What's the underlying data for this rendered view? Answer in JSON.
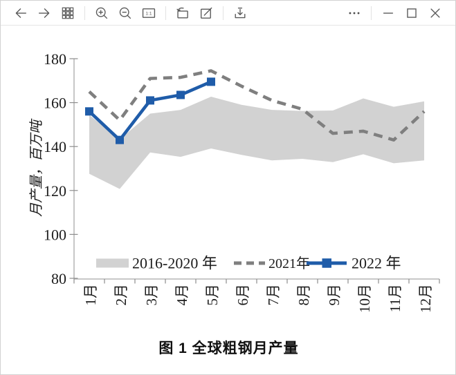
{
  "toolbar": {
    "actual_size_label": "1:1",
    "left_buttons": [
      "back",
      "forward",
      "thumbnail-grid",
      "zoom-in",
      "zoom-out",
      "actual-size",
      "rotate",
      "edit",
      "download"
    ],
    "right_buttons": [
      "more-options",
      "minimize",
      "maximize",
      "close"
    ]
  },
  "figure": {
    "caption": "图 1  全球粗钢月产量"
  },
  "chart_data": {
    "type": "line",
    "title": "图 1 全球粗钢月产量",
    "ylabel": "月产量，百万吨",
    "xlabel": "",
    "ylim": [
      80,
      180
    ],
    "yticks": [
      180,
      160,
      140,
      120,
      100,
      80
    ],
    "categories": [
      "1月",
      "2月",
      "3月",
      "4月",
      "5月",
      "6月",
      "7月",
      "8月",
      "9月",
      "10月",
      "11月",
      "12月"
    ],
    "grid": false,
    "legend_position": "bottom-inside",
    "colors": {
      "band": "#d2d2d2",
      "dashed": "#7f7f7f",
      "blue": "#1f5ca9",
      "axis": "#a8a8a8",
      "tick": "#8c8c8c",
      "text": "#1c1c1c"
    },
    "series": [
      {
        "name": "2016-2020 年",
        "type": "band",
        "color": "#d2d2d2",
        "max": [
          154.4,
          143.3,
          155.0,
          156.7,
          162.7,
          159.0,
          156.7,
          156.2,
          156.4,
          161.9,
          158.1,
          160.6
        ],
        "min": [
          127.6,
          120.7,
          137.3,
          135.3,
          139.1,
          136.2,
          133.7,
          134.4,
          132.9,
          136.5,
          132.4,
          133.7
        ]
      },
      {
        "name": "2021年",
        "type": "line",
        "style": "dashed",
        "color": "#7f7f7f",
        "values": [
          165,
          152,
          171,
          171.5,
          174.5,
          167.5,
          161,
          157,
          146,
          147,
          143,
          156
        ]
      },
      {
        "name": "2022 年",
        "type": "line",
        "style": "solid-square-markers",
        "color": "#1f5ca9",
        "values": [
          156,
          143,
          161,
          163.5,
          169.5
        ]
      }
    ]
  }
}
